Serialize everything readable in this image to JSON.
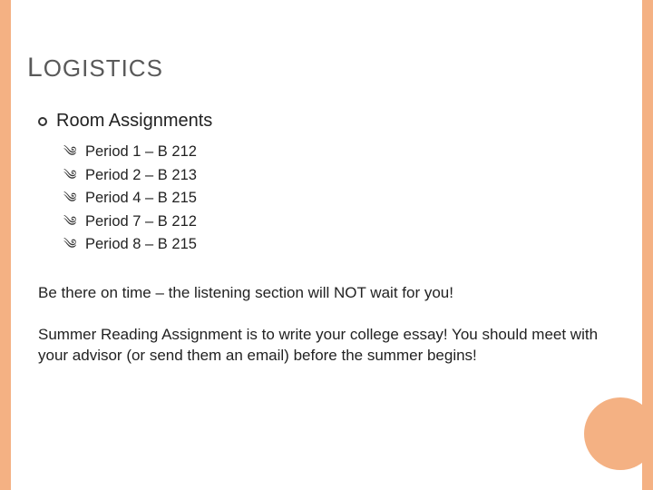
{
  "colors": {
    "accent": "#f4b183",
    "title": "#595959",
    "text": "#222222",
    "background": "#ffffff"
  },
  "title": {
    "first_letter": "L",
    "rest": "OGISTICS"
  },
  "section": {
    "heading": "Room Assignments",
    "items": [
      "Period 1 – B 212",
      "Period 2 – B 213",
      "Period 4 – B 215",
      "Period 7 – B 212",
      "Period 8 – B 215"
    ]
  },
  "paragraphs": [
    "Be there on time – the listening section will NOT wait for you!",
    "Summer Reading Assignment is to write your college essay! You should meet with your advisor (or send them an email) before the summer begins!"
  ]
}
